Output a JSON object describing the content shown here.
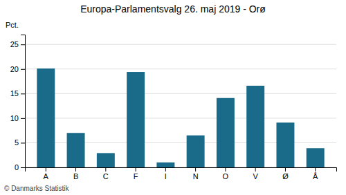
{
  "chart_data": {
    "type": "bar",
    "title": "Europa-Parlamentsvalg 26. maj 2019 - Orø",
    "categories": [
      "A",
      "B",
      "C",
      "F",
      "I",
      "N",
      "O",
      "V",
      "Ø",
      "Å"
    ],
    "values": [
      20.1,
      7.0,
      2.9,
      19.4,
      1.0,
      6.5,
      14.1,
      16.6,
      9.1,
      3.9
    ],
    "color": "#1a6b8a",
    "ylabel": "Pct.",
    "footer": "© Danmarks Statistik",
    "ylim": [
      0,
      27
    ],
    "yticks": [
      0,
      5,
      10,
      15,
      20,
      25
    ],
    "grid": true
  }
}
